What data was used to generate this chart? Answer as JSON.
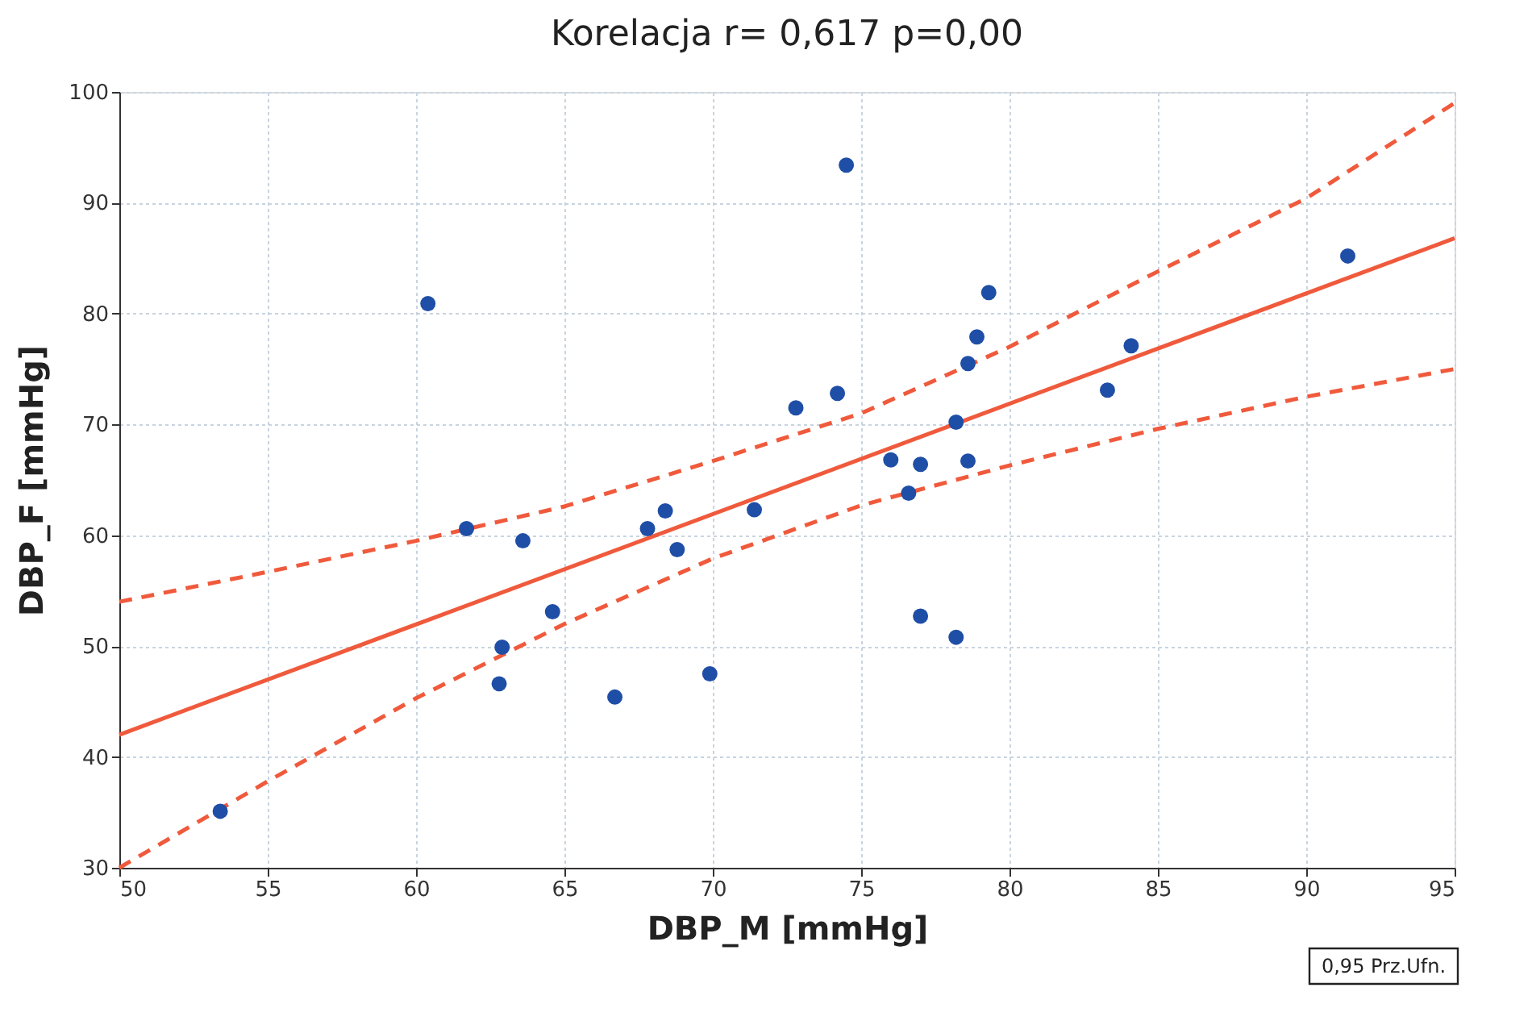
{
  "chart_data": {
    "type": "scatter",
    "title": "Korelacja r= 0,617  p=0,00",
    "xlabel": "DBP_M [mmHg]",
    "ylabel": "DBP_F [mmHg]",
    "xlim": [
      50,
      95
    ],
    "ylim": [
      30,
      100
    ],
    "xticks": [
      50,
      55,
      60,
      65,
      70,
      75,
      80,
      85,
      90,
      95
    ],
    "yticks": [
      30,
      40,
      50,
      60,
      70,
      80,
      90,
      100
    ],
    "grid": true,
    "annotations": [
      "0,95 Prz.Ufn."
    ],
    "series": [
      {
        "marker": "circle",
        "color": "#1f4ea6",
        "x": [
          53.4,
          60.4,
          61.7,
          63.6,
          62.9,
          62.8,
          64.6,
          66.7,
          67.8,
          68.4,
          68.8,
          69.9,
          71.4,
          72.8,
          74.2,
          74.5,
          76.0,
          76.6,
          77.0,
          77.0,
          78.2,
          78.2,
          78.6,
          78.9,
          78.6,
          79.3,
          83.3,
          84.1,
          91.4
        ],
        "values": [
          35.1,
          80.9,
          60.6,
          59.5,
          49.9,
          46.6,
          53.1,
          45.4,
          60.6,
          62.2,
          58.7,
          47.5,
          62.3,
          71.5,
          72.8,
          93.4,
          66.8,
          63.8,
          66.4,
          52.7,
          70.2,
          50.8,
          75.5,
          77.9,
          66.7,
          81.9,
          73.1,
          77.1,
          85.2
        ]
      },
      {
        "type": "line",
        "color": "#f05a3c",
        "line_style": "solid",
        "x": [
          50,
          95
        ],
        "values": [
          42,
          86.8
        ]
      },
      {
        "type": "line",
        "color": "#f05a3c",
        "line_style": "dashed",
        "x": [
          50,
          55,
          60,
          65,
          70,
          75,
          80,
          85,
          90,
          95
        ],
        "values": [
          54,
          56.7,
          59.5,
          62.6,
          66.7,
          71,
          77,
          83.8,
          90.4,
          99
        ]
      },
      {
        "type": "line",
        "color": "#f05a3c",
        "line_style": "dashed",
        "x": [
          50,
          55,
          60,
          65,
          70,
          75,
          80,
          85,
          90,
          95
        ],
        "values": [
          30,
          37.8,
          45.3,
          52,
          57.9,
          62.7,
          66.3,
          69.6,
          72.5,
          75
        ]
      }
    ]
  }
}
